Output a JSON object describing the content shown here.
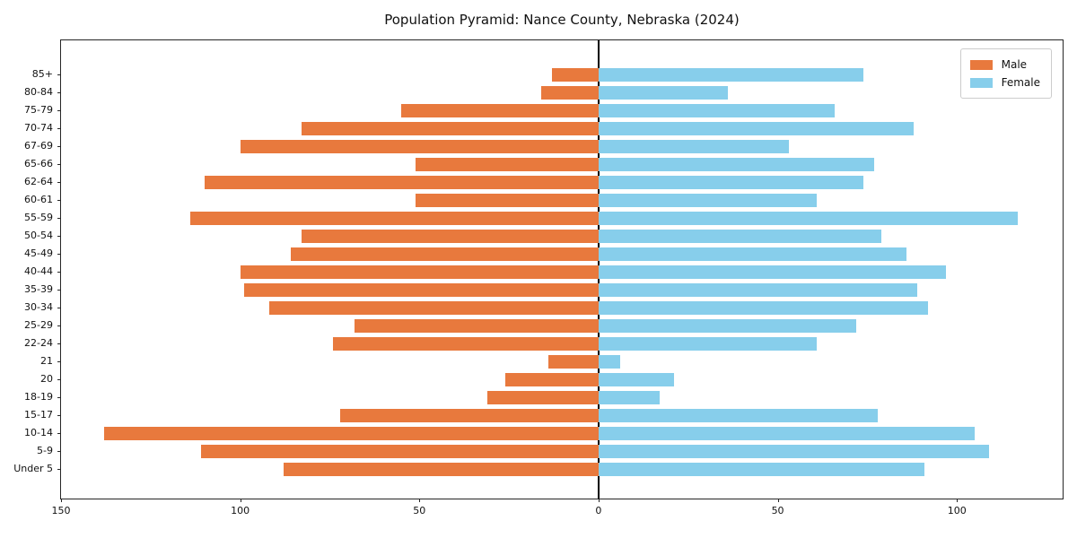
{
  "title": "Population Pyramid: Nance County, Nebraska (2024)",
  "legend": {
    "male_label": "Male",
    "female_label": "Female"
  },
  "colors": {
    "male": "#E8793D",
    "female": "#87CEEB",
    "axis": "#262626",
    "zero_line": "#000000"
  },
  "x_axis": {
    "tick_values": [
      -150,
      -100,
      -50,
      0,
      50,
      100
    ],
    "tick_labels": [
      "150",
      "100",
      "50",
      "0",
      "50",
      "100"
    ]
  },
  "chart_data": {
    "type": "bar",
    "subtype": "population-pyramid",
    "title": "Population Pyramid: Nance County, Nebraska (2024)",
    "xlabel": "",
    "ylabel": "",
    "xlim": [
      -150,
      130
    ],
    "grid": false,
    "legend_position": "upper right",
    "categories": [
      "85+",
      "80-84",
      "75-79",
      "70-74",
      "67-69",
      "65-66",
      "62-64",
      "60-61",
      "55-59",
      "50-54",
      "45-49",
      "40-44",
      "35-39",
      "30-34",
      "25-29",
      "22-24",
      "21",
      "20",
      "18-19",
      "15-17",
      "10-14",
      "5-9",
      "Under 5"
    ],
    "series": [
      {
        "name": "Male",
        "side": "left",
        "color": "#E8793D",
        "values": [
          13,
          16,
          55,
          83,
          100,
          51,
          110,
          51,
          114,
          83,
          86,
          100,
          99,
          92,
          68,
          74,
          14,
          26,
          31,
          72,
          138,
          111,
          88
        ]
      },
      {
        "name": "Female",
        "side": "right",
        "color": "#87CEEB",
        "values": [
          74,
          36,
          66,
          88,
          53,
          77,
          74,
          61,
          117,
          79,
          86,
          97,
          89,
          92,
          72,
          61,
          6,
          21,
          17,
          78,
          105,
          109,
          91
        ]
      }
    ]
  }
}
